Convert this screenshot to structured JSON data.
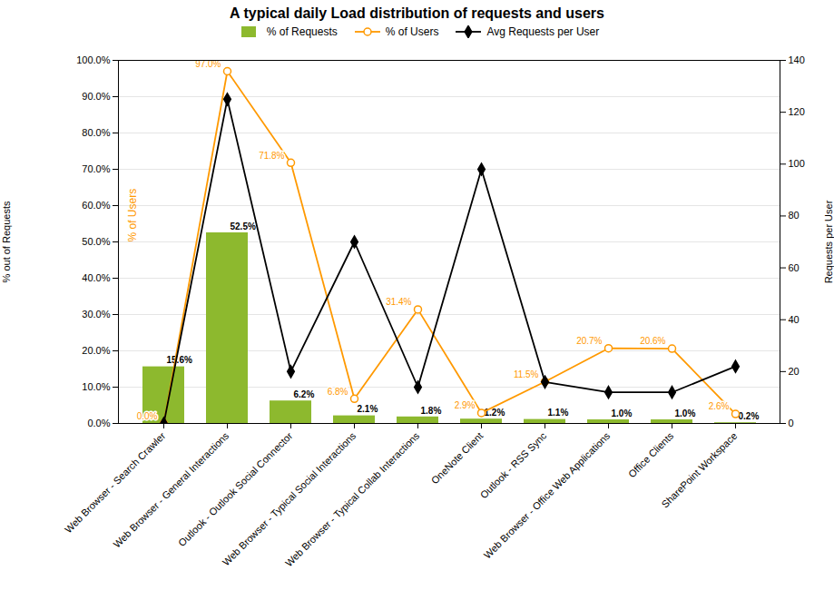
{
  "chart_data": {
    "type": "bar",
    "title": "A typical daily Load distribution of requests and users",
    "categories": [
      "Web Browser - Search Crawler",
      "Web Browser - General Interactions",
      "Outlook - Outlook Social Connector",
      "Web Browser - Typical Social Interactions",
      "Web Browser - Typical Collab Interactions",
      "OneNote Client",
      "Outlook - RSS Sync",
      "Web Browser - Office Web Applications",
      "Office Clients",
      "SharePoint Workspace"
    ],
    "series": [
      {
        "name": "% of Requests",
        "type": "bar",
        "color": "#8db92e",
        "values": [
          15.6,
          52.5,
          6.2,
          2.1,
          1.8,
          1.2,
          1.1,
          1.0,
          1.0,
          0.2
        ],
        "data_labels": true,
        "value_labels": [
          "15.6%",
          "52.5%",
          "6.2%",
          "2.1%",
          "1.8%",
          "1.2%",
          "1.1%",
          "1.0%",
          "1.0%",
          "0.2%"
        ]
      },
      {
        "name": "% of Users",
        "type": "line",
        "color": "#ff9900",
        "marker": "circle",
        "values": [
          0.0,
          97.0,
          71.8,
          6.8,
          31.4,
          2.9,
          11.5,
          20.7,
          20.6,
          2.6
        ],
        "data_labels": true,
        "value_labels": [
          "0.0%",
          "97.0%",
          "71.8%",
          "6.8%",
          "31.4%",
          "2.9%",
          "11.5%",
          "20.7%",
          "20.6%",
          "2.6%"
        ]
      },
      {
        "name": "Avg Requests per User",
        "type": "line",
        "color": "#000000",
        "marker": "diamond",
        "axis": "y2",
        "values": [
          0,
          125,
          20,
          70,
          14,
          98,
          16,
          12,
          12,
          22
        ]
      }
    ],
    "ylabel": "% out of Requests",
    "y2label": "Requests per User",
    "annotations": [
      "% of Users"
    ],
    "ylim": [
      0,
      100
    ],
    "yticks": [
      {
        "value": 0,
        "label": "0.0%"
      },
      {
        "value": 10,
        "label": "10.0%"
      },
      {
        "value": 20,
        "label": "20.0%"
      },
      {
        "value": 30,
        "label": "30.0%"
      },
      {
        "value": 40,
        "label": "40.0%"
      },
      {
        "value": 50,
        "label": "50.0%"
      },
      {
        "value": 60,
        "label": "60.0%"
      },
      {
        "value": 70,
        "label": "70.0%"
      },
      {
        "value": 80,
        "label": "80.0%"
      },
      {
        "value": 90,
        "label": "90.0%"
      },
      {
        "value": 100,
        "label": "100.0%"
      }
    ],
    "y2lim": [
      0,
      140
    ],
    "y2ticks": [
      0,
      20,
      40,
      60,
      80,
      100,
      120,
      140
    ],
    "grid": true,
    "legend": "top"
  }
}
